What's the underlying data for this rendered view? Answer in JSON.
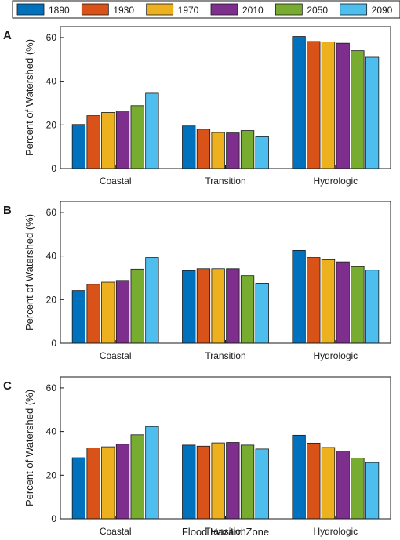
{
  "chart_data": {
    "type": "bar",
    "xlabel": "Flood Hazard Zone",
    "ylabel": "Percent of Watershed (%)",
    "ylim": [
      0,
      65
    ],
    "yticks": [
      0,
      20,
      40,
      60
    ],
    "categories": [
      "Coastal",
      "Transition",
      "Hydrologic"
    ],
    "legend": {
      "placement": "top",
      "entries": [
        {
          "label": "1890",
          "color": "#0072BD"
        },
        {
          "label": "1930",
          "color": "#D95319"
        },
        {
          "label": "1970",
          "color": "#EDB120"
        },
        {
          "label": "2010",
          "color": "#7E2F8E"
        },
        {
          "label": "2050",
          "color": "#77AC30"
        },
        {
          "label": "2090",
          "color": "#4DBEEE"
        }
      ]
    },
    "panels": [
      {
        "label": "A",
        "series": [
          {
            "name": "1890",
            "values": [
              20.2,
              19.5,
              60.5
            ]
          },
          {
            "name": "1930",
            "values": [
              24.2,
              18.0,
              58.2
            ]
          },
          {
            "name": "1970",
            "values": [
              25.7,
              16.5,
              58.0
            ]
          },
          {
            "name": "2010",
            "values": [
              26.4,
              16.3,
              57.4
            ]
          },
          {
            "name": "2050",
            "values": [
              28.8,
              17.4,
              54.0
            ]
          },
          {
            "name": "2090",
            "values": [
              34.5,
              14.6,
              51.0
            ]
          }
        ]
      },
      {
        "label": "B",
        "series": [
          {
            "name": "1890",
            "values": [
              24.2,
              33.3,
              42.6
            ]
          },
          {
            "name": "1930",
            "values": [
              27.0,
              34.2,
              39.3
            ]
          },
          {
            "name": "1970",
            "values": [
              28.0,
              34.2,
              38.3
            ]
          },
          {
            "name": "2010",
            "values": [
              28.8,
              34.2,
              37.3
            ]
          },
          {
            "name": "2050",
            "values": [
              34.0,
              31.0,
              35.1
            ]
          },
          {
            "name": "2090",
            "values": [
              39.3,
              27.5,
              33.5
            ]
          }
        ]
      },
      {
        "label": "C",
        "series": [
          {
            "name": "1890",
            "values": [
              28.0,
              33.8,
              38.3
            ]
          },
          {
            "name": "1930",
            "values": [
              32.5,
              33.3,
              34.7
            ]
          },
          {
            "name": "1970",
            "values": [
              33.0,
              34.8,
              32.7
            ]
          },
          {
            "name": "2010",
            "values": [
              34.2,
              35.0,
              31.0
            ]
          },
          {
            "name": "2050",
            "values": [
              38.5,
              33.8,
              27.8
            ]
          },
          {
            "name": "2090",
            "values": [
              42.3,
              32.0,
              25.8
            ]
          }
        ]
      }
    ]
  }
}
